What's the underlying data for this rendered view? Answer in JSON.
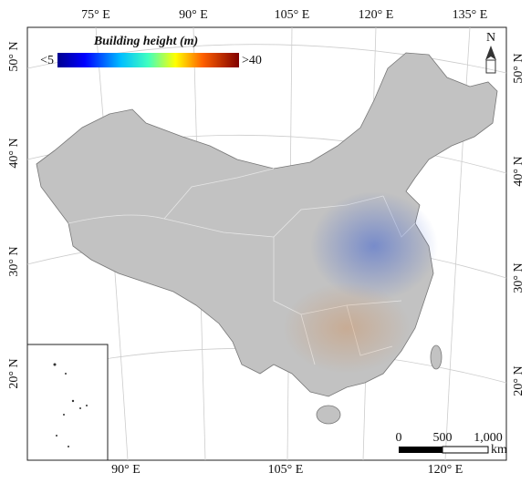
{
  "map": {
    "legend": {
      "title": "Building height (m)",
      "min_label": "<5",
      "max_label": ">40"
    },
    "top_labels": [
      "75° E",
      "90° E",
      "105° E",
      "120° E",
      "135° E"
    ],
    "bottom_labels": [
      "90° E",
      "105° E",
      "120° E"
    ],
    "left_labels": [
      "50° N",
      "40° N",
      "30° N",
      "20° N"
    ],
    "right_labels": [
      "50° N",
      "40° N",
      "30° N",
      "20° N"
    ],
    "scale_bar": {
      "labels": [
        "0",
        "500",
        "1,000"
      ],
      "unit": "km"
    },
    "north": "N"
  }
}
